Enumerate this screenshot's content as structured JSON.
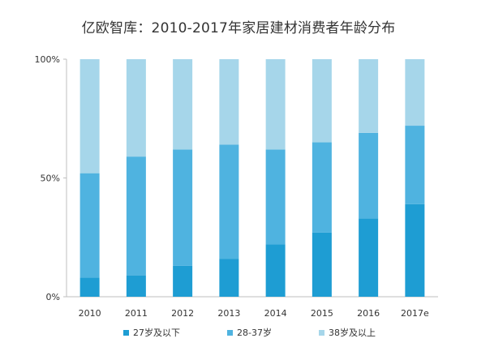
{
  "chart_data": {
    "type": "bar",
    "stacked": true,
    "title": "亿欧智库：2010-2017年家居建材消费者年龄分布",
    "categories": [
      "2010",
      "2011",
      "2012",
      "2013",
      "2014",
      "2015",
      "2016",
      "2017e"
    ],
    "series": [
      {
        "name": "27岁及以下",
        "color": "#1e9dd3",
        "values": [
          8,
          9,
          13,
          16,
          22,
          27,
          33,
          39
        ]
      },
      {
        "name": "28-37岁",
        "color": "#4fb3e0",
        "values": [
          44,
          50,
          49,
          48,
          40,
          38,
          36,
          33
        ]
      },
      {
        "name": "38岁及以上",
        "color": "#a6d6ea",
        "values": [
          48,
          41,
          38,
          36,
          38,
          35,
          31,
          28
        ]
      }
    ],
    "yticks": [
      "0%",
      "50%",
      "100%"
    ],
    "ylim": [
      0,
      100
    ],
    "grid": false,
    "legend_position": "bottom"
  }
}
